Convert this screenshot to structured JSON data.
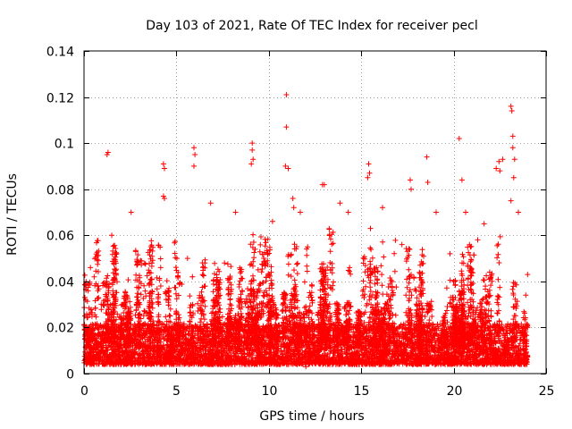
{
  "chart_data": {
    "type": "scatter",
    "title": "Day 103 of 2021, Rate Of TEC Index for receiver pecl",
    "xlabel": "GPS time / hours",
    "ylabel": "ROTI / TECUs",
    "xlim": [
      0,
      25
    ],
    "ylim": [
      0,
      0.14
    ],
    "x_ticks": [
      0,
      5,
      10,
      15,
      20,
      25
    ],
    "y_ticks": [
      0,
      0.02,
      0.04,
      0.06,
      0.08,
      0.1,
      0.12,
      0.14
    ],
    "x_tick_labels": [
      "0",
      "5",
      "10",
      "15",
      "20",
      "25"
    ],
    "y_tick_labels": [
      "0",
      "0.02",
      "0.04",
      "0.06",
      "0.08",
      "0.1",
      "0.12",
      "0.14"
    ],
    "grid": true,
    "marker": "+",
    "series": [
      {
        "name": "ROTI",
        "color": "#ff0000",
        "sample_points": [
          [
            1.25,
            0.095
          ],
          [
            1.3,
            0.096
          ],
          [
            4.3,
            0.091
          ],
          [
            4.35,
            0.089
          ],
          [
            4.3,
            0.077
          ],
          [
            4.35,
            0.076
          ],
          [
            5.95,
            0.098
          ],
          [
            6.0,
            0.095
          ],
          [
            5.95,
            0.09
          ],
          [
            9.1,
            0.1
          ],
          [
            9.1,
            0.097
          ],
          [
            9.15,
            0.093
          ],
          [
            9.05,
            0.091
          ],
          [
            10.95,
            0.121
          ],
          [
            10.95,
            0.107
          ],
          [
            10.9,
            0.09
          ],
          [
            11.05,
            0.089
          ],
          [
            11.3,
            0.076
          ],
          [
            11.35,
            0.072
          ],
          [
            12.9,
            0.082
          ],
          [
            13.0,
            0.082
          ],
          [
            15.4,
            0.091
          ],
          [
            15.45,
            0.087
          ],
          [
            15.35,
            0.085
          ],
          [
            17.65,
            0.084
          ],
          [
            17.7,
            0.08
          ],
          [
            18.55,
            0.094
          ],
          [
            18.6,
            0.083
          ],
          [
            20.3,
            0.102
          ],
          [
            20.45,
            0.084
          ],
          [
            22.3,
            0.089
          ],
          [
            22.45,
            0.092
          ],
          [
            22.5,
            0.088
          ],
          [
            22.65,
            0.093
          ],
          [
            23.1,
            0.116
          ],
          [
            23.15,
            0.114
          ],
          [
            23.2,
            0.103
          ],
          [
            23.2,
            0.098
          ],
          [
            23.3,
            0.093
          ],
          [
            23.25,
            0.085
          ],
          [
            23.1,
            0.075
          ],
          [
            1.5,
            0.06
          ],
          [
            2.55,
            0.07
          ],
          [
            6.85,
            0.074
          ],
          [
            8.2,
            0.07
          ],
          [
            10.2,
            0.066
          ],
          [
            11.7,
            0.07
          ],
          [
            13.85,
            0.074
          ],
          [
            14.3,
            0.07
          ],
          [
            16.15,
            0.072
          ],
          [
            19.05,
            0.07
          ],
          [
            20.65,
            0.07
          ],
          [
            21.65,
            0.065
          ],
          [
            23.5,
            0.07
          ],
          [
            0.35,
            0.046
          ],
          [
            0.55,
            0.042
          ],
          [
            5.6,
            0.05
          ],
          [
            7.6,
            0.048
          ],
          [
            12.1,
            0.055
          ],
          [
            17.2,
            0.056
          ],
          [
            19.8,
            0.052
          ],
          [
            21.3,
            0.058
          ],
          [
            24.0,
            0.043
          ],
          [
            23.9,
            0.034
          ],
          [
            0.05,
            0.033
          ],
          [
            0.05,
            0.025
          ],
          [
            24.0,
            0.02
          ],
          [
            0.1,
            0.005
          ],
          [
            12.0,
            0.003
          ]
        ]
      }
    ],
    "bulk_distribution": {
      "description": "dense band of points across 0-24 h",
      "base_min": 0.004,
      "base_typical_max": 0.02,
      "cluster_max": 0.06
    }
  }
}
